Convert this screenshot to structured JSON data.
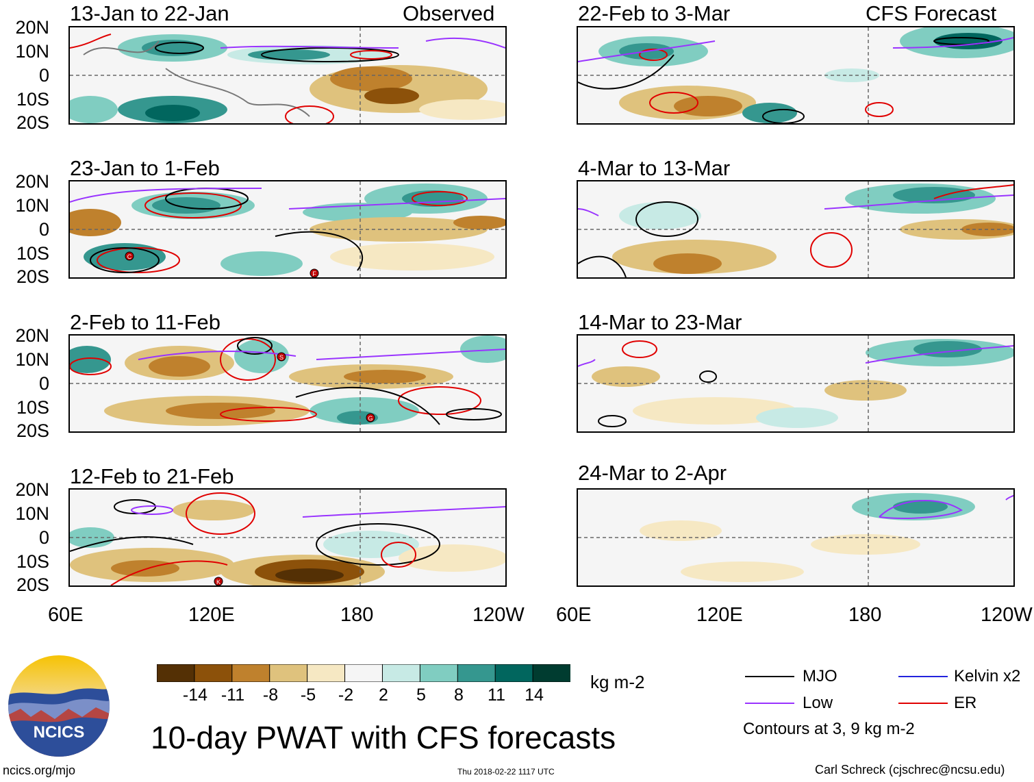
{
  "header": {
    "observed_label": "Observed",
    "forecast_label": "CFS Forecast"
  },
  "panels": {
    "obs": [
      {
        "title": "13-Jan to 22-Jan"
      },
      {
        "title": "23-Jan to 1-Feb"
      },
      {
        "title": "2-Feb to 11-Feb"
      },
      {
        "title": "12-Feb to 21-Feb"
      }
    ],
    "fcst": [
      {
        "title": "22-Feb to 3-Mar"
      },
      {
        "title": "4-Mar to 13-Mar"
      },
      {
        "title": "14-Mar to 23-Mar"
      },
      {
        "title": "24-Mar to 2-Apr"
      }
    ]
  },
  "axes": {
    "lat_labels": [
      "20N",
      "10N",
      "0",
      "10S",
      "20S"
    ],
    "lon_labels": [
      "60E",
      "120E",
      "180",
      "120W"
    ]
  },
  "colorbar": {
    "unit": "kg m-2",
    "ticks": [
      "-14",
      "-11",
      "-8",
      "-5",
      "-2",
      "2",
      "5",
      "8",
      "11",
      "14"
    ],
    "colors": [
      "#543005",
      "#8c510a",
      "#bf812d",
      "#dfc27d",
      "#f6e8c3",
      "#f5f5f5",
      "#c7eae5",
      "#80cdc1",
      "#35978f",
      "#01665e",
      "#003c30"
    ]
  },
  "legend": {
    "mjo": "MJO",
    "low": "Low",
    "kelvin": "Kelvin x2",
    "er": "ER",
    "contours_note": "Contours at 3, 9 kg m-2",
    "colors": {
      "mjo": "#000000",
      "low": "#9933ff",
      "kelvin": "#2222dd",
      "er": "#e00000"
    }
  },
  "logo": {
    "text": "NCICS"
  },
  "footer": {
    "url": "ncics.org/mjo",
    "timestamp": "Thu 2018-02-22 1117 UTC",
    "author": "Carl Schreck (cjschrec@ncsu.edu)"
  },
  "title": "10-day PWAT with CFS forecasts",
  "storms": [
    "C",
    "F",
    "S",
    "G",
    "K"
  ]
}
